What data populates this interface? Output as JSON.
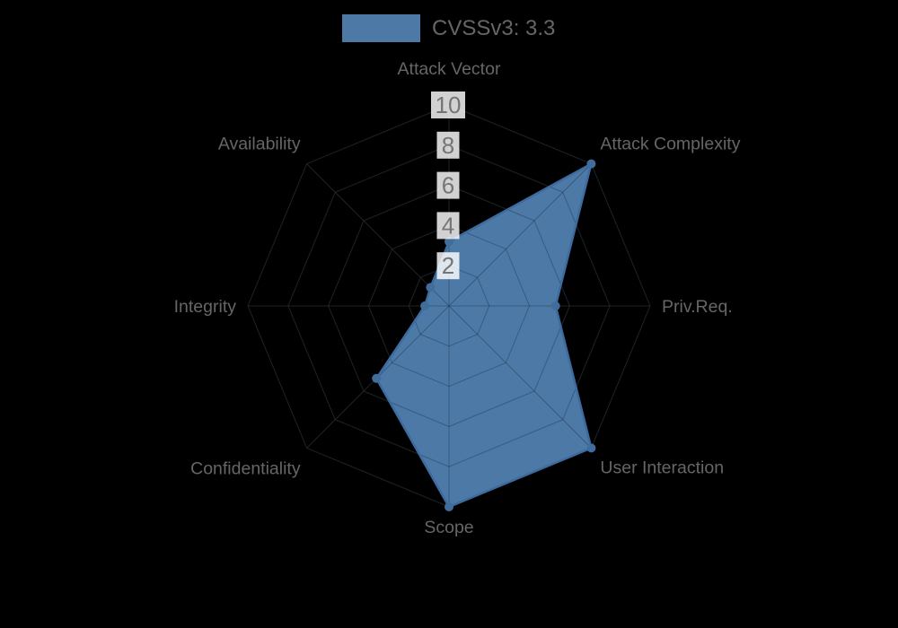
{
  "legend": {
    "label": "CVSSv3: 3.3",
    "swatch_color": "#4d79a7"
  },
  "chart_data": {
    "type": "radar",
    "title": "CVSSv3: 3.3",
    "axes": [
      "Attack Vector",
      "Attack Complexity",
      "Priv.Req.",
      "User Interaction",
      "Scope",
      "Confidentiality",
      "Integrity",
      "Availability"
    ],
    "series": [
      {
        "name": "CVSSv3: 3.3",
        "values": [
          3.2,
          10,
          5.3,
          10,
          10,
          5.1,
          1.2,
          1.3
        ],
        "color": "#4d79a7"
      }
    ],
    "rings": [
      2,
      4,
      6,
      8,
      10
    ],
    "max": 10,
    "legend_position": "top",
    "grid": "on",
    "colors": {
      "fill": "#4d79a7",
      "edge": "#3e6b9e",
      "marker": "#416d9d",
      "axis_label_text": "#666666",
      "tick_text": "#757575",
      "tick_box": "rgba(255,255,255,0.82)",
      "grid_under": "rgba(176,176,176,0.22)",
      "grid_over": "rgba(10,22,38,0.30)",
      "background": "#000000"
    }
  }
}
